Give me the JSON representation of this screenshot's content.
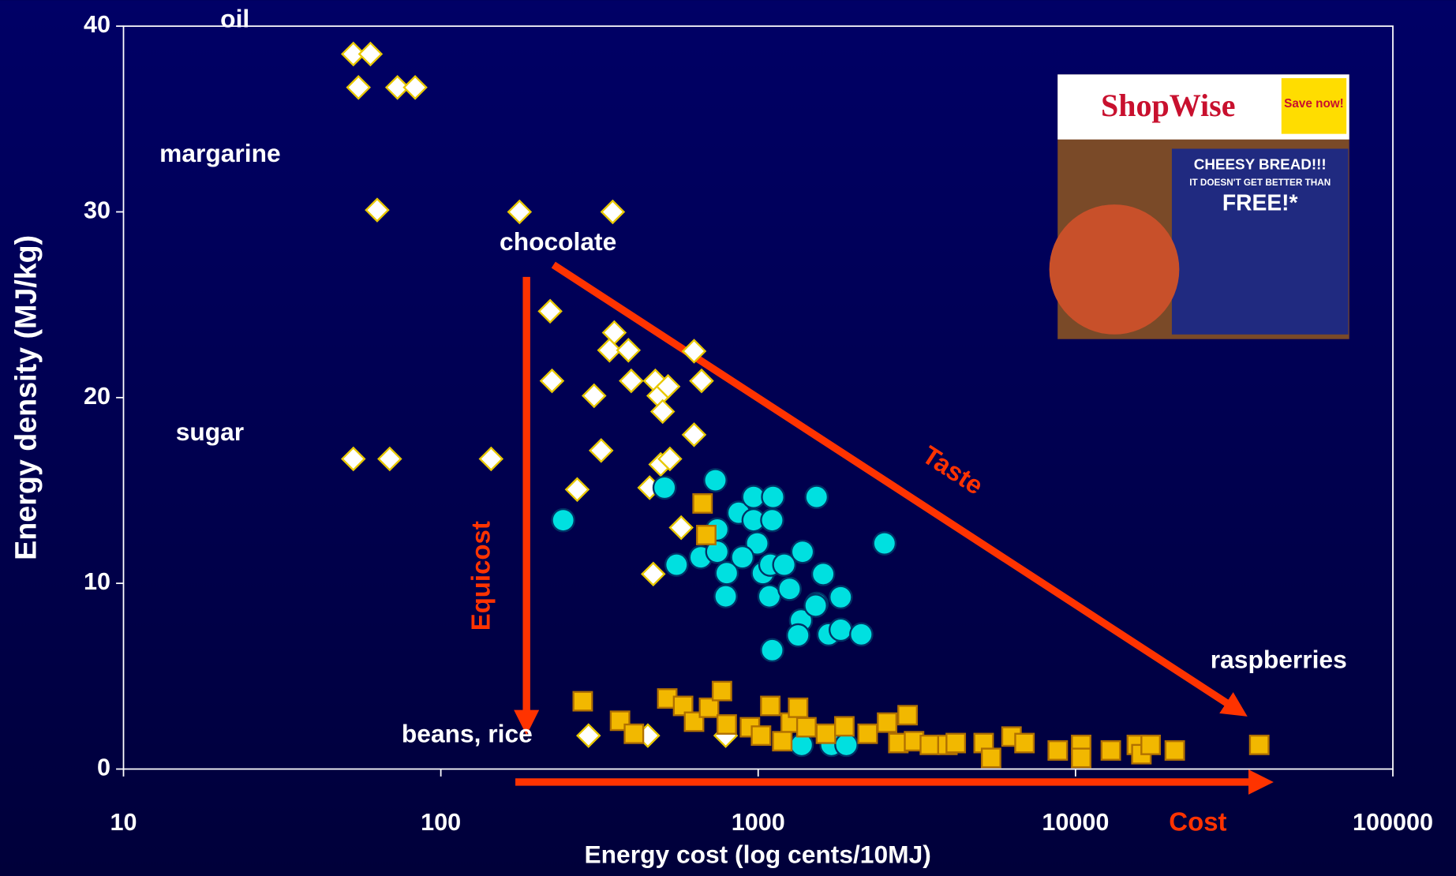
{
  "chart_data": {
    "type": "scatter",
    "xscale": "log",
    "xlabel": "Energy cost (log cents/10MJ)",
    "ylabel": "Energy density (MJ/kg)",
    "xlim": [
      10,
      100000
    ],
    "ylim": [
      0,
      40
    ],
    "xticks": [
      10,
      100,
      1000,
      10000,
      100000
    ],
    "yticks": [
      0,
      10,
      20,
      30,
      40
    ],
    "series": [
      {
        "color": "#ffffff",
        "edgecolor": "#e8c800",
        "marker": "diamond",
        "x": [
          53,
          60,
          55,
          73,
          83,
          63,
          177,
          348,
          221,
          224,
          352,
          340,
          390,
          304,
          398,
          474,
          486,
          520,
          500,
          628,
          663,
          628,
          320,
          53,
          69,
          144,
          493,
          527,
          455,
          269,
          572,
          467,
          292,
          449,
          790
        ],
        "values": [
          38.5,
          38.5,
          36.7,
          36.7,
          36.7,
          30.1,
          30,
          30,
          24.65,
          20.9,
          23.5,
          22.55,
          22.55,
          20.1,
          20.9,
          20.9,
          20.1,
          20.6,
          19.25,
          22.5,
          20.9,
          18,
          17.15,
          16.7,
          16.7,
          16.7,
          16.4,
          16.7,
          15.15,
          15.05,
          13,
          10.5,
          1.8,
          1.8,
          1.8
        ]
      },
      {
        "color": "#00e0e0",
        "edgecolor": "#003366",
        "marker": "circle",
        "x": [
          507,
          733,
          243,
          553,
          659,
          743,
          743,
          796,
          790,
          868,
          967,
          967,
          1114,
          1107,
          993,
          892,
          1035,
          1092,
          1208,
          1085,
          1256,
          1380,
          1528,
          1256,
          1364,
          1336,
          1528,
          1603,
          1518,
          1820,
          1667,
          1820,
          2113,
          1107,
          2501,
          1371,
          1702,
          1896
        ],
        "values": [
          15.15,
          15.55,
          13.4,
          11,
          11.4,
          12.9,
          11.7,
          10.55,
          9.3,
          13.8,
          14.65,
          13.4,
          14.65,
          13.4,
          12.15,
          11.4,
          10.55,
          11,
          11,
          9.3,
          9.7,
          11.7,
          14.65,
          9.7,
          8,
          7.2,
          8.9,
          10.5,
          8.8,
          9.25,
          7.25,
          7.5,
          7.25,
          6.4,
          12.15,
          1.3,
          1.3,
          1.3
        ]
      },
      {
        "color": "#f2b800",
        "edgecolor": "#b07000",
        "marker": "square",
        "x": [
          280,
          367,
          406,
          517,
          580,
          628,
          700,
          769,
          796,
          942,
          1021,
          1092,
          1191,
          1266,
          1336,
          1419,
          1635,
          1869,
          2213,
          2548,
          2765,
          2957,
          3099,
          3475,
          3948,
          4194,
          5135,
          5420,
          6285,
          6906,
          8790,
          10420,
          10420,
          12920,
          15600,
          16130,
          17250,
          20550,
          37930,
          668,
          686
        ],
        "values": [
          3.65,
          2.6,
          1.9,
          3.8,
          3.4,
          2.55,
          3.3,
          4.2,
          2.4,
          2.25,
          1.8,
          3.4,
          1.5,
          2.5,
          3.3,
          2.25,
          1.9,
          2.3,
          1.9,
          2.5,
          1.4,
          2.9,
          1.5,
          1.3,
          1.3,
          1.4,
          1.4,
          0.6,
          1.75,
          1.4,
          1,
          1.3,
          0.6,
          1,
          1.3,
          0.8,
          1.3,
          1,
          1.3,
          14.3,
          12.6
        ]
      }
    ],
    "annotations": [
      "oil",
      "margarine",
      "sugar",
      "chocolate",
      "beans, rice",
      "raspberries",
      "Taste",
      "Equicost",
      "Cost"
    ]
  },
  "inset": {
    "brand": "ShopWise",
    "offer": "Save now!",
    "headline": "CHEESY BREAD!!!",
    "subline": "IT DOESN'T GET BETTER THAN",
    "price": "FREE!*"
  }
}
